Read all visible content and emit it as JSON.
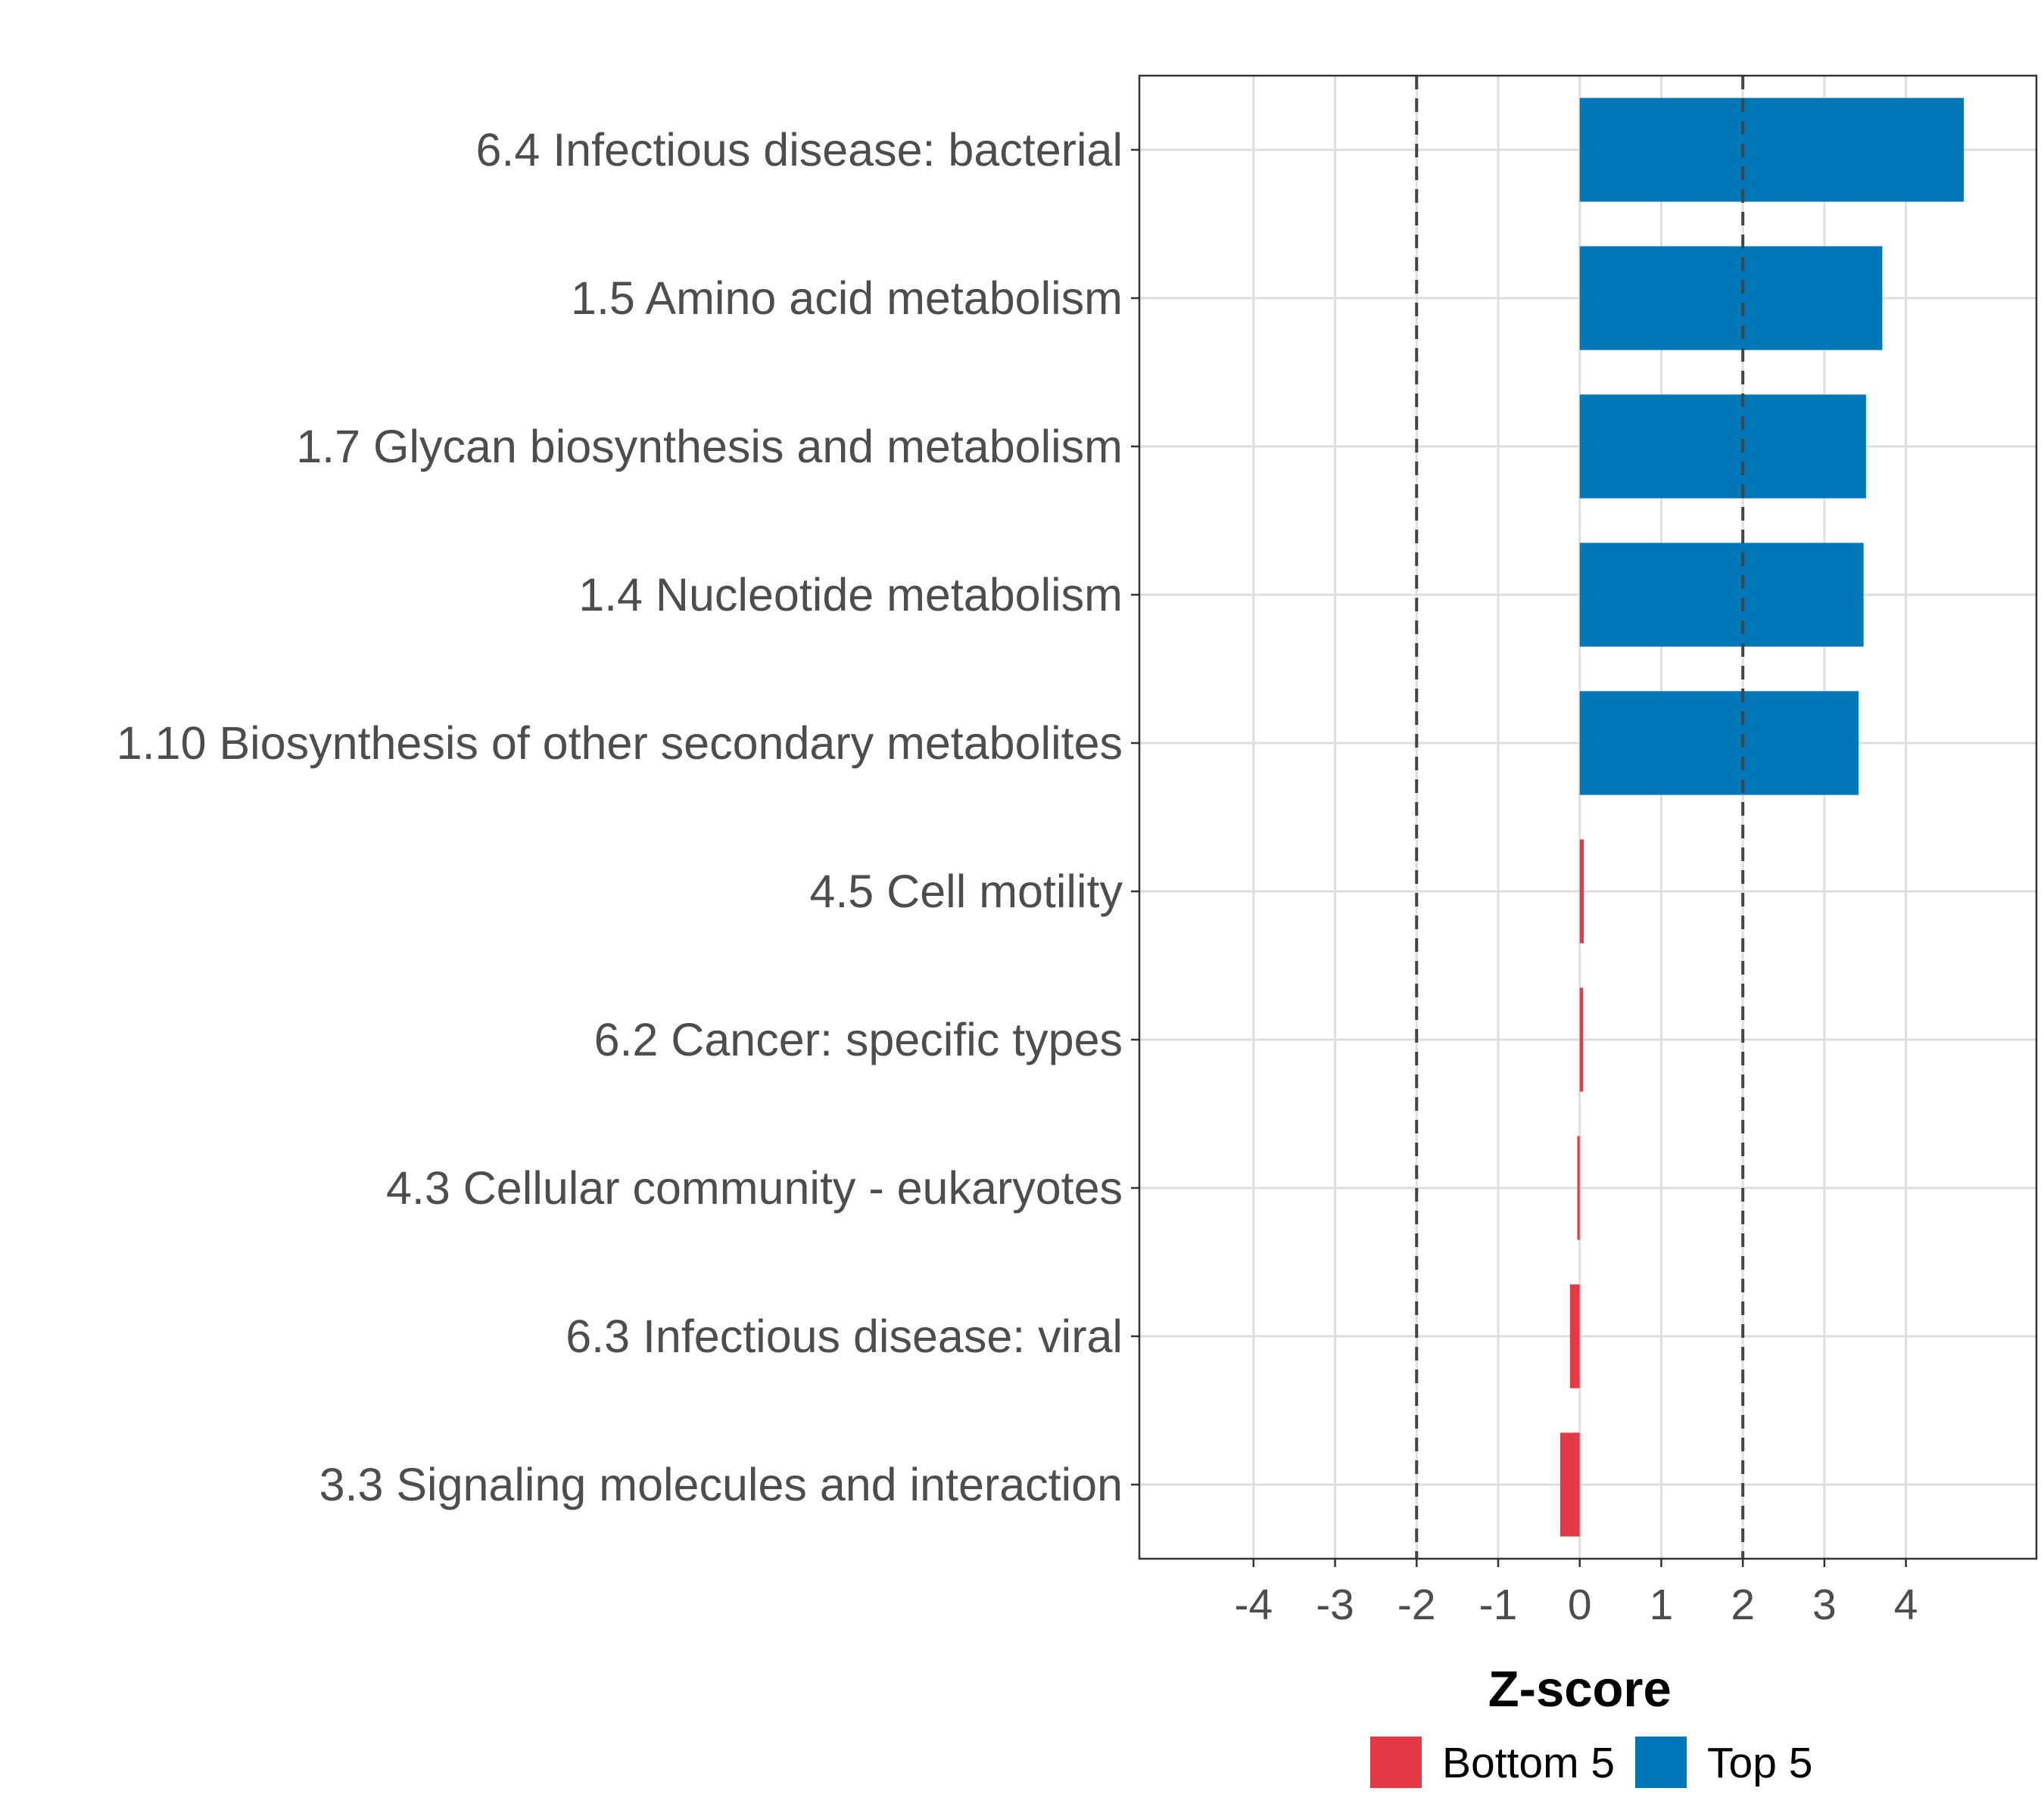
{
  "chart_data": {
    "type": "bar",
    "orientation": "horizontal",
    "title": "",
    "xlabel": "Z-score",
    "ylabel": "",
    "xlim": [
      -5.4,
      5.6
    ],
    "xticks": [
      -4,
      -3,
      -2,
      -1,
      0,
      1,
      2,
      3,
      4
    ],
    "xtick_labels": [
      "-4",
      "-3",
      "-2",
      "-1",
      "0",
      "1",
      "2",
      "3",
      "4"
    ],
    "reference_lines": [
      -2,
      2
    ],
    "grid": true,
    "legend_position": "bottom",
    "categories": [
      "6.4 Infectious disease: bacterial",
      "1.5 Amino acid metabolism",
      "1.7 Glycan biosynthesis and metabolism",
      "1.4 Nucleotide metabolism",
      "1.10 Biosynthesis of other secondary metabolites",
      "4.5 Cell motility",
      "6.2 Cancer: specific types",
      "4.3 Cellular community - eukaryotes",
      "6.3 Infectious disease: viral",
      "3.3 Signaling molecules and interaction"
    ],
    "values": [
      4.71,
      3.71,
      3.51,
      3.48,
      3.42,
      0.05,
      0.04,
      -0.03,
      -0.12,
      -0.24
    ],
    "groups": [
      "Top 5",
      "Top 5",
      "Top 5",
      "Top 5",
      "Top 5",
      "Bottom 5",
      "Bottom 5",
      "Bottom 5",
      "Bottom 5",
      "Bottom 5"
    ],
    "legend": [
      {
        "name": "Bottom 5",
        "color": "#e63946"
      },
      {
        "name": "Top 5",
        "color": "#0077b6"
      }
    ]
  }
}
